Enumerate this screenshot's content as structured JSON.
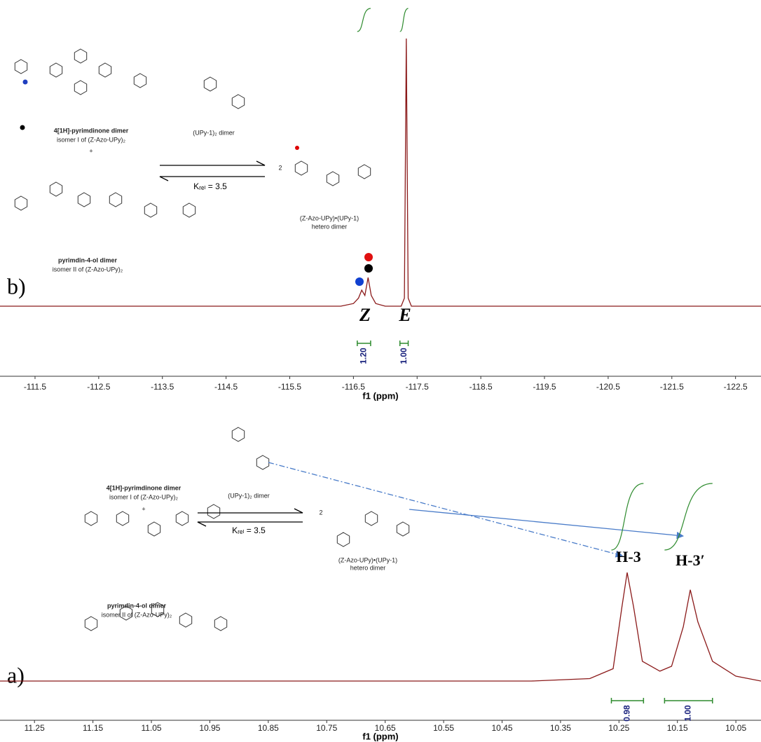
{
  "chart_data": [
    {
      "type": "line",
      "panel_label": "b)",
      "xlabel": "f1 (ppm)",
      "x": [
        -110.95,
        -116.3,
        -116.5,
        -116.58,
        -116.63,
        -116.68,
        -116.73,
        -116.78,
        -116.85,
        -117.0,
        -117.25,
        -117.3,
        -117.33,
        -117.36,
        -117.41,
        -117.6,
        -122.9
      ],
      "series": [
        {
          "color": "#8b1a1a",
          "values": [
            0,
            0,
            1,
            3,
            6,
            4,
            10.7,
            4,
            1,
            0,
            0,
            3,
            100,
            3,
            0,
            0,
            0
          ]
        }
      ],
      "xlim": [
        -110.95,
        -122.9
      ],
      "ylim": [
        0,
        100
      ],
      "xticks": [
        -111.5,
        -112.5,
        -113.5,
        -114.5,
        -115.5,
        -116.5,
        -117.5,
        -118.5,
        -119.5,
        -120.5,
        -121.5,
        -122.5
      ],
      "annotations": [
        "Z",
        "E"
      ],
      "integrals": {
        "ranges": [
          [
            -116.56,
            -116.77
          ],
          [
            -117.23,
            -117.36
          ]
        ],
        "values": [
          1.2,
          1.0
        ],
        "value_labels": [
          "1.20",
          "1.00"
        ],
        "color": "#2e8b2e"
      }
    },
    {
      "type": "line",
      "panel_label": "a)",
      "xlabel": "f1 (ppm)",
      "x": [
        11.309,
        10.4,
        10.3,
        10.26,
        10.245,
        10.236,
        10.225,
        10.21,
        10.18,
        10.16,
        10.14,
        10.128,
        10.115,
        10.09,
        10.05,
        10.007
      ],
      "series": [
        {
          "color": "#8b1a1a",
          "values": [
            0,
            0,
            1,
            5,
            30,
            44,
            30,
            8,
            4,
            6,
            22,
            37,
            24,
            8,
            2,
            0
          ]
        }
      ],
      "xlim": [
        11.309,
        10.007
      ],
      "ylim": [
        0,
        100
      ],
      "xticks": [
        11.25,
        11.15,
        11.05,
        10.95,
        10.85,
        10.75,
        10.65,
        10.55,
        10.45,
        10.35,
        10.25,
        10.15,
        10.05
      ],
      "annotations": [
        "H-3",
        "H-3′"
      ],
      "integrals": {
        "ranges": [
          [
            10.263,
            10.208
          ],
          [
            10.172,
            10.09
          ]
        ],
        "values": [
          0.98,
          1.0
        ],
        "value_labels": [
          "0.98",
          "1.00"
        ],
        "color": "#2e8b2e"
      }
    }
  ],
  "schemes": [
    {
      "left_top_title": "4[1H]-pyrimdinone dimer",
      "left_top_sub": "isomer I of (Z-Azo-UPy)₂",
      "plus": "+",
      "left_bottom_title": "pyrimdin-4-ol dimer",
      "left_bottom_sub": "isomer II of (Z-Azo-UPy)₂",
      "middle": "(UPy-1)₂ dimer",
      "constant": "Kᵣₑₗ = 3.5",
      "coefficient": "2",
      "product": "(Z-Azo-UPy)•(UPy-1)",
      "product_sub": "hetero dimer"
    },
    {
      "left_top_title": "4[1H]-pyrimdinone dimer",
      "left_top_sub": "isomer I of (Z-Azo-UPy)₂",
      "plus": "+",
      "left_bottom_title": "pyrimdin-4-ol dimer",
      "left_bottom_sub": "isomer II of (Z-Azo-UPy)₂",
      "middle": "(UPy-1)₂ dimer",
      "constant": "Kᵣₑₗ = 3.5",
      "coefficient": "2",
      "product": "(Z-Azo-UPy)•(UPy-1)",
      "product_sub": "hetero dimer"
    }
  ]
}
